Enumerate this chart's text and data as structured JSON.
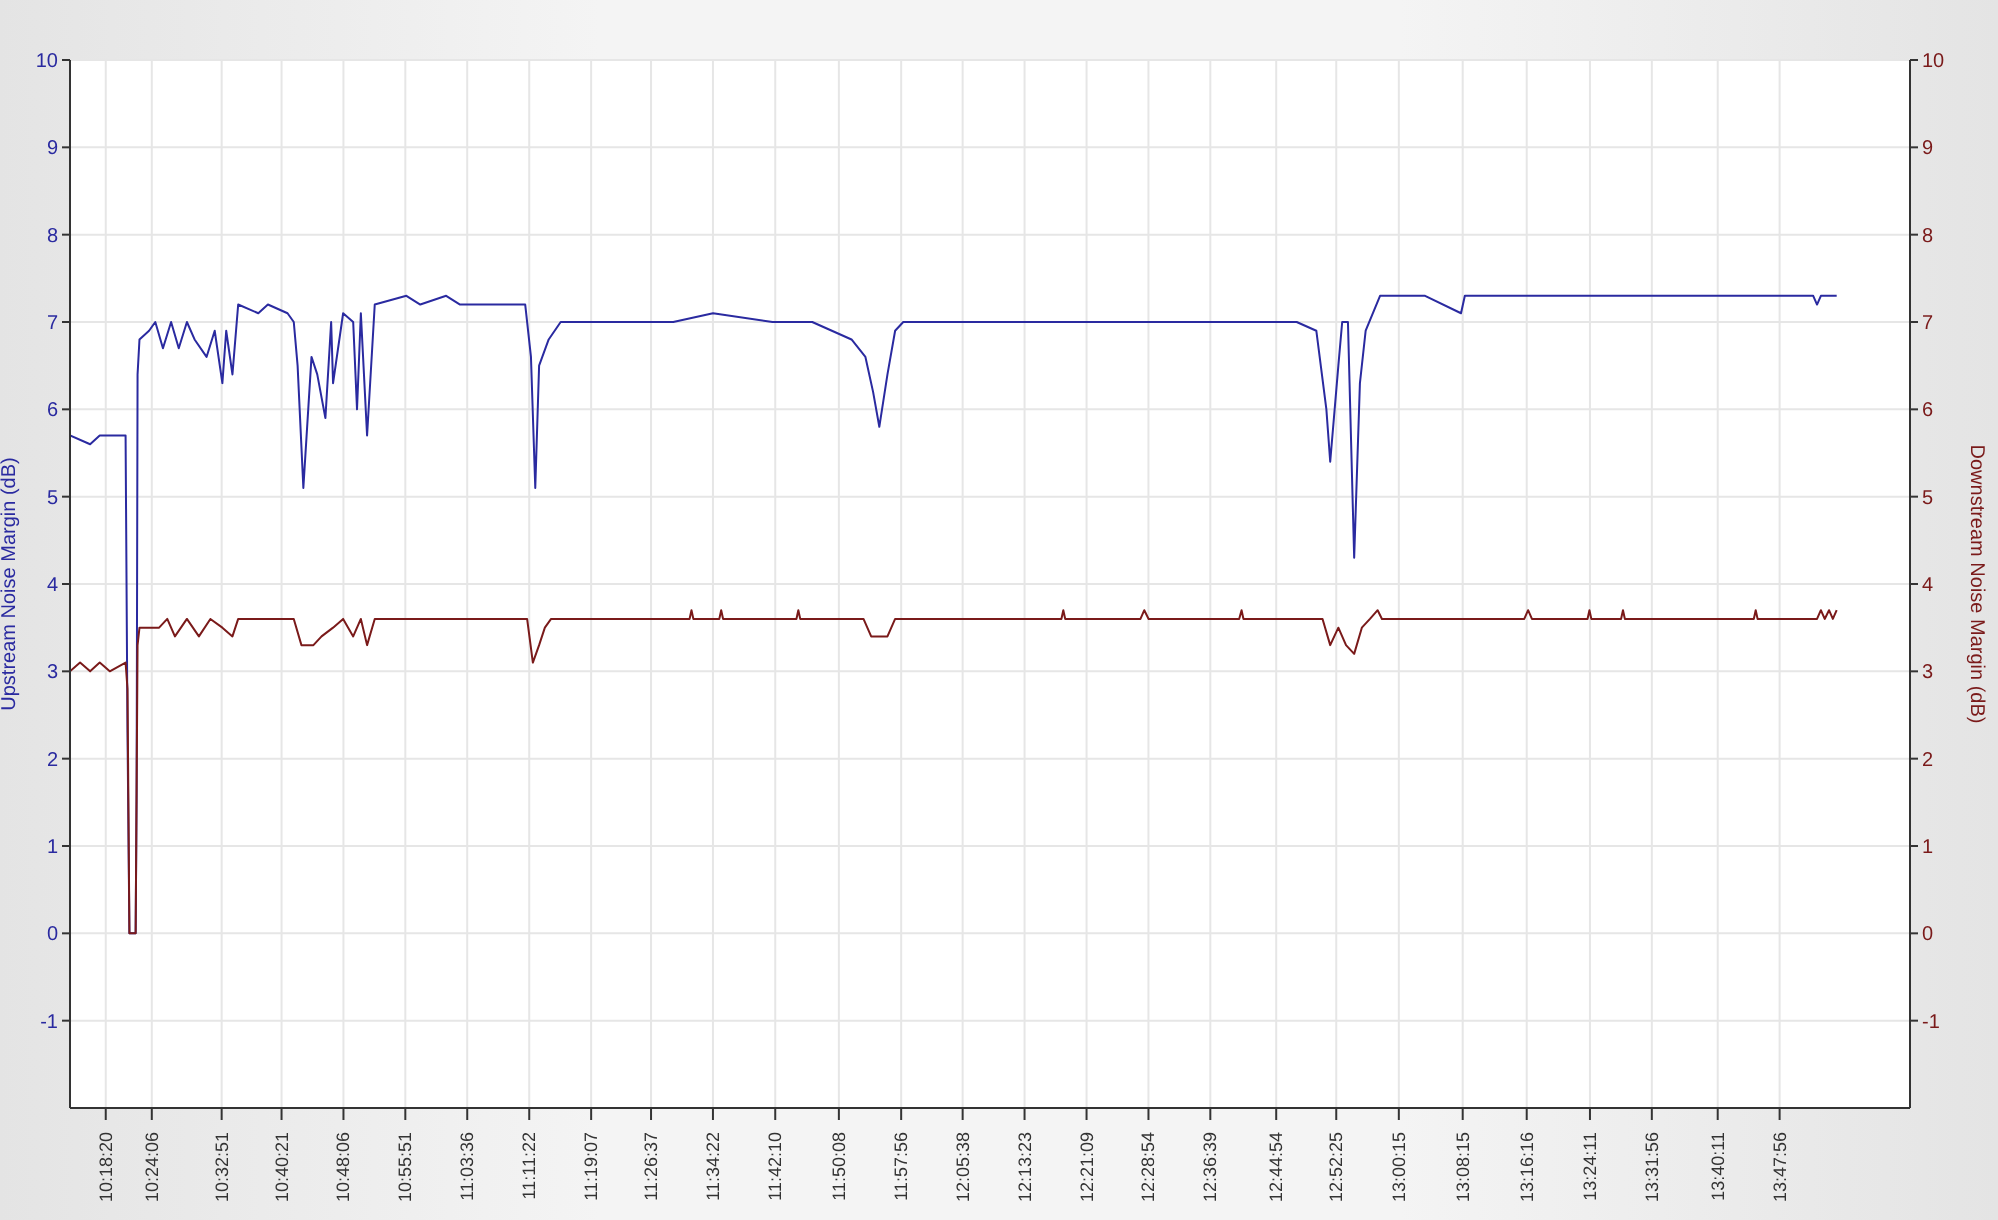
{
  "chart_data": {
    "type": "line",
    "ylabel": "Upstream Noise Margin (dB)",
    "y2label": "Downstream Noise Margin (dB)",
    "xlim": [
      10.231,
      14.071
    ],
    "xticks": [
      {
        "value": 10.3056,
        "label": "10:18:20"
      },
      {
        "value": 10.4017,
        "label": "10:24:06"
      },
      {
        "value": 10.5475,
        "label": "10:32:51"
      },
      {
        "value": 10.6725,
        "label": "10:40:21"
      },
      {
        "value": 10.8017,
        "label": "10:48:06"
      },
      {
        "value": 10.9308,
        "label": "10:55:51"
      },
      {
        "value": 11.06,
        "label": "11:03:36"
      },
      {
        "value": 11.1894,
        "label": "11:11:22"
      },
      {
        "value": 11.3186,
        "label": "11:19:07"
      },
      {
        "value": 11.4436,
        "label": "11:26:37"
      },
      {
        "value": 11.5728,
        "label": "11:34:22"
      },
      {
        "value": 11.7028,
        "label": "11:42:10"
      },
      {
        "value": 11.8356,
        "label": "11:50:08"
      },
      {
        "value": 11.9656,
        "label": "11:57:56"
      },
      {
        "value": 12.0939,
        "label": "12:05:38"
      },
      {
        "value": 12.2231,
        "label": "12:13:23"
      },
      {
        "value": 12.3525,
        "label": "12:21:09"
      },
      {
        "value": 12.4817,
        "label": "12:28:54"
      },
      {
        "value": 12.6108,
        "label": "12:36:39"
      },
      {
        "value": 12.7483,
        "label": "12:44:54"
      },
      {
        "value": 12.8736,
        "label": "12:52:25"
      },
      {
        "value": 13.0042,
        "label": "13:00:15"
      },
      {
        "value": 13.1375,
        "label": "13:08:15"
      },
      {
        "value": 13.2711,
        "label": "13:16:16"
      },
      {
        "value": 13.4031,
        "label": "13:24:11"
      },
      {
        "value": 13.5322,
        "label": "13:31:56"
      },
      {
        "value": 13.6697,
        "label": "13:40:11"
      },
      {
        "value": 13.7989,
        "label": "13:47:56"
      }
    ],
    "ylim": [
      -2,
      10
    ],
    "yticks": [
      -1,
      0,
      1,
      2,
      3,
      4,
      5,
      6,
      7,
      8,
      9,
      10
    ],
    "y2lim": [
      -2,
      10
    ],
    "y2ticks": [
      -1,
      0,
      1,
      2,
      3,
      4,
      5,
      6,
      7,
      8,
      9,
      10
    ],
    "grid": true,
    "legend": false,
    "marker": "none",
    "line_style": "solid",
    "series": [
      {
        "color": "#2a2aa0",
        "axis": "y",
        "x": [
          10.231,
          10.273,
          10.293,
          10.347,
          10.351,
          10.355,
          10.368,
          10.37,
          10.372,
          10.376,
          10.396,
          10.409,
          10.425,
          10.442,
          10.458,
          10.475,
          10.491,
          10.516,
          10.533,
          10.549,
          10.557,
          10.57,
          10.582,
          10.624,
          10.644,
          10.685,
          10.698,
          10.706,
          10.718,
          10.735,
          10.747,
          10.764,
          10.776,
          10.78,
          10.801,
          10.822,
          10.83,
          10.838,
          10.851,
          10.867,
          10.933,
          10.962,
          11.016,
          11.045,
          11.14,
          11.181,
          11.193,
          11.202,
          11.21,
          11.23,
          11.255,
          11.325,
          11.408,
          11.49,
          11.573,
          11.697,
          11.78,
          11.821,
          11.862,
          11.891,
          11.907,
          11.92,
          11.937,
          11.953,
          11.97,
          12.151,
          12.399,
          12.647,
          12.791,
          12.832,
          12.853,
          12.861,
          12.878,
          12.886,
          12.898,
          12.911,
          12.923,
          12.935,
          12.965,
          13.059,
          13.134,
          13.142,
          13.39,
          13.596,
          13.869,
          13.877,
          13.885,
          13.918
        ],
        "values": [
          5.7,
          5.6,
          5.7,
          5.7,
          2.3,
          0,
          0,
          1.6,
          6.4,
          6.8,
          6.9,
          7.0,
          6.7,
          7.0,
          6.7,
          7.0,
          6.8,
          6.6,
          6.9,
          6.3,
          6.9,
          6.4,
          7.2,
          7.1,
          7.2,
          7.1,
          7.0,
          6.5,
          5.1,
          6.6,
          6.4,
          5.9,
          7.0,
          6.3,
          7.1,
          7.0,
          6.0,
          7.1,
          5.7,
          7.2,
          7.3,
          7.2,
          7.3,
          7.2,
          7.2,
          7.2,
          6.6,
          5.1,
          6.5,
          6.8,
          7.0,
          7.0,
          7.0,
          7.0,
          7.1,
          7.0,
          7.0,
          6.9,
          6.8,
          6.6,
          6.2,
          5.8,
          6.4,
          6.9,
          7.0,
          7.0,
          7.0,
          7.0,
          7.0,
          6.9,
          6.0,
          5.4,
          6.5,
          7.0,
          7.0,
          4.3,
          6.3,
          6.9,
          7.3,
          7.3,
          7.1,
          7.3,
          7.3,
          7.3,
          7.3,
          7.2,
          7.3,
          7.3
        ]
      },
      {
        "color": "#7a1a1a",
        "axis": "y2",
        "x": [
          10.231,
          10.252,
          10.273,
          10.293,
          10.314,
          10.347,
          10.351,
          10.355,
          10.368,
          10.372,
          10.376,
          10.417,
          10.434,
          10.45,
          10.475,
          10.5,
          10.524,
          10.549,
          10.57,
          10.582,
          10.698,
          10.714,
          10.739,
          10.756,
          10.78,
          10.801,
          10.822,
          10.838,
          10.851,
          10.867,
          11.185,
          11.197,
          11.21,
          11.222,
          11.235,
          11.524,
          11.528,
          11.532,
          11.586,
          11.59,
          11.594,
          11.747,
          11.751,
          11.755,
          11.887,
          11.903,
          11.937,
          11.953,
          12.3,
          12.304,
          12.308,
          12.465,
          12.473,
          12.482,
          12.671,
          12.676,
          12.68,
          12.845,
          12.861,
          12.878,
          12.894,
          12.911,
          12.927,
          12.944,
          12.96,
          12.969,
          13.266,
          13.274,
          13.282,
          13.398,
          13.402,
          13.406,
          13.468,
          13.472,
          13.476,
          13.745,
          13.749,
          13.753,
          13.877,
          13.885,
          13.893,
          13.902,
          13.91,
          13.918
        ],
        "values": [
          3.0,
          3.1,
          3.0,
          3.1,
          3.0,
          3.1,
          2.8,
          0,
          0,
          3.3,
          3.5,
          3.5,
          3.6,
          3.4,
          3.6,
          3.4,
          3.6,
          3.5,
          3.4,
          3.6,
          3.6,
          3.3,
          3.3,
          3.4,
          3.5,
          3.6,
          3.4,
          3.6,
          3.3,
          3.6,
          3.6,
          3.1,
          3.3,
          3.5,
          3.6,
          3.6,
          3.7,
          3.6,
          3.6,
          3.7,
          3.6,
          3.6,
          3.7,
          3.6,
          3.6,
          3.4,
          3.4,
          3.6,
          3.6,
          3.7,
          3.6,
          3.6,
          3.7,
          3.6,
          3.6,
          3.7,
          3.6,
          3.6,
          3.3,
          3.5,
          3.3,
          3.2,
          3.5,
          3.6,
          3.7,
          3.6,
          3.6,
          3.7,
          3.6,
          3.6,
          3.7,
          3.6,
          3.6,
          3.7,
          3.6,
          3.6,
          3.7,
          3.6,
          3.6,
          3.7,
          3.6,
          3.7,
          3.6,
          3.7
        ]
      }
    ]
  }
}
